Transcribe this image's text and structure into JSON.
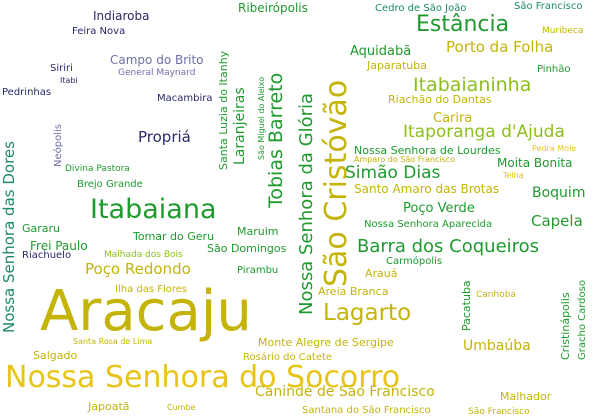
{
  "words": {
    "aracaju": "Aracaju",
    "socorro": "Nossa Senhora do Socorro",
    "sao_cristovao": "São Cristóvão",
    "itabaiana": "Itabaiana",
    "lagarto": "Lagarto",
    "estancia": "Estância",
    "tobias_barreto": "Tobias Barreto",
    "senhora_gloria": "Nossa Senhora da Glória",
    "senhora_dores": "Nossa Senhora das Dores",
    "itabaianinha": "Itabaianinha",
    "barra_coqueiros": "Barra dos Coqueiros",
    "simao_dias": "Simão Dias",
    "itaporanga": "Itaporanga d'Ajuda",
    "poco_redondo": "Poço Redondo",
    "porto_folha": "Porto da Folha",
    "laranjeiras": "Laranjeiras",
    "caninde": "Canindé de São Francisco",
    "propria": "Propriá",
    "capela": "Capela",
    "boquim": "Boquim",
    "umbauba": "Umbaúba",
    "poco_verde": "Poço Verde",
    "santo_amaro": "Santo Amaro das Brotas",
    "aquidaba": "Aquidabã",
    "carira": "Carira",
    "moita_bonita": "Moita Bonita",
    "senhora_lourdes": "Nossa Senhora de Lourdes",
    "senhora_aparecida": "Nossa Senhora Aparecida",
    "monte_alegre": "Monte Alegre de Sergipe",
    "areia_branca": "Areia Branca",
    "santana_sf": "Santana do São Francisco",
    "sao_sf": "São Francisco",
    "malhador": "Malhador",
    "rosario": "Rosário do Catete",
    "salgado": "Salgado",
    "japoata": "Japoatã",
    "cumbe": "Cumbe",
    "santa_rosa": "Santa Rosa de Lima",
    "ilha_flores": "Ilha das Flores",
    "tomar_geru": "Tomar do Geru",
    "maruim": "Maruim",
    "sao_domingos": "São Domingos",
    "frei_paulo": "Frei Paulo",
    "riachuelo": "Riachuelo",
    "malhada_bois": "Malhada dos Bois",
    "gararu": "Gararu",
    "pirambu": "Pirambu",
    "araua": "Arauá",
    "carmopolis": "Carmópolis",
    "pacatuba": "Pacatuba",
    "canhoba": "Canhoba",
    "cristinapolis": "Cristinápolis",
    "gracho_cardoso": "Gracho Cardoso",
    "pedra_mole": "Pedra Mole",
    "telha": "Telha",
    "amparo": "Amparo do São Francisco",
    "riachao": "Riachão do Dantas",
    "japaratuba": "Japaratuba",
    "pinhao": "Pinhão",
    "muribeca": "Muribeca",
    "cedro": "Cedro de São João",
    "ribeiropolis": "Ribeirópolis",
    "indiaroba": "Indiaroba",
    "feira_nova": "Feira Nova",
    "campo_brito": "Campo do Brito",
    "general_maynard": "General Maynard",
    "siriri": "Siriri",
    "itabi": "Itabi",
    "pedrinhas": "Pedrinhas",
    "macambira": "Macambira",
    "neopolis": "Neópolis",
    "divina_pastora": "Divina Pastora",
    "brejo_grande": "Brejo Grande",
    "santa_luzia": "Santa Luzia do Itanhy",
    "sao_miguel": "São Miguel do Aleixo"
  }
}
